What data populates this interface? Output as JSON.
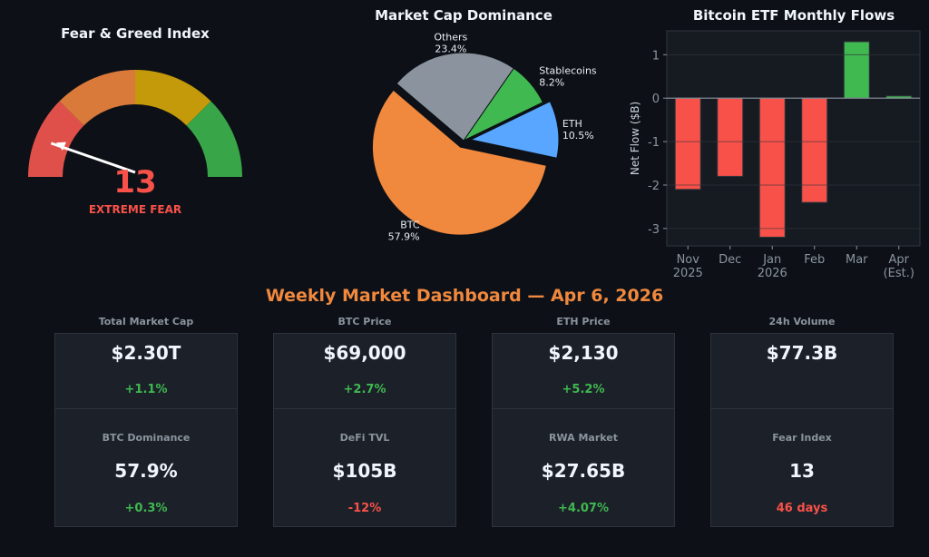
{
  "chart_data": [
    {
      "type": "gauge",
      "title": "Fear & Greed Index",
      "value": 13,
      "label": "EXTREME FEAR",
      "range": [
        0,
        100
      ],
      "segments": [
        {
          "from": 0,
          "to": 25,
          "color": "#e0504a"
        },
        {
          "from": 25,
          "to": 50,
          "color": "#d97a3a"
        },
        {
          "from": 50,
          "to": 75,
          "color": "#c49a0a"
        },
        {
          "from": 75,
          "to": 100,
          "color": "#38a648"
        }
      ],
      "value_color": "#f85149"
    },
    {
      "type": "pie",
      "title": "Market Cap Dominance",
      "slices": [
        {
          "name": "ETH",
          "value": 10.5,
          "label": "10.5%",
          "color": "#58a6ff",
          "explode": true
        },
        {
          "name": "Stablecoins",
          "value": 8.2,
          "label": "8.2%",
          "color": "#3fb950",
          "explode": false
        },
        {
          "name": "Others",
          "value": 23.4,
          "label": "23.4%",
          "color": "#8b949e",
          "explode": false
        },
        {
          "name": "BTC",
          "value": 57.9,
          "label": "57.9%",
          "color": "#f0883e",
          "explode": true
        }
      ]
    },
    {
      "type": "bar",
      "title": "Bitcoin ETF Monthly Flows",
      "ylabel": "Net Flow ($B)",
      "xlabel": "",
      "categories": [
        [
          "Nov",
          "2025"
        ],
        [
          "Dec"
        ],
        [
          "Jan",
          "2026"
        ],
        [
          "Feb"
        ],
        [
          "Mar"
        ],
        [
          "Apr",
          "(Est.)"
        ]
      ],
      "values": [
        -2.1,
        -1.8,
        -3.2,
        -2.4,
        1.3,
        0.05
      ],
      "ylim": [
        -3.4,
        1.55
      ],
      "yticks": [
        -3,
        -2,
        -1,
        0,
        1
      ],
      "grid": true,
      "positive_color": "#3fb950",
      "negative_color": "#f85149"
    }
  ],
  "dashboard_title": "Weekly Market Dashboard — Apr 6, 2026",
  "cards": [
    {
      "top": {
        "label": "Total Market Cap",
        "value": "$2.30T",
        "change": "+1.1%",
        "color": "#3fb950"
      },
      "bottom": {
        "label": "BTC Dominance",
        "value": "57.9%",
        "change": "+0.3%",
        "color": "#3fb950"
      }
    },
    {
      "top": {
        "label": "BTC Price",
        "value": "$69,000",
        "change": "+2.7%",
        "color": "#3fb950"
      },
      "bottom": {
        "label": "DeFi TVL",
        "value": "$105B",
        "change": "-12%",
        "color": "#f85149"
      }
    },
    {
      "top": {
        "label": "ETH Price",
        "value": "$2,130",
        "change": "+5.2%",
        "color": "#3fb950"
      },
      "bottom": {
        "label": "RWA Market",
        "value": "$27.65B",
        "change": "+4.07%",
        "color": "#3fb950"
      }
    },
    {
      "top": {
        "label": "24h Volume",
        "value": "$77.3B",
        "change": "",
        "color": "#3fb950"
      },
      "bottom": {
        "label": "Fear Index",
        "value": "13",
        "change": "46 days",
        "color": "#f85149"
      }
    }
  ]
}
